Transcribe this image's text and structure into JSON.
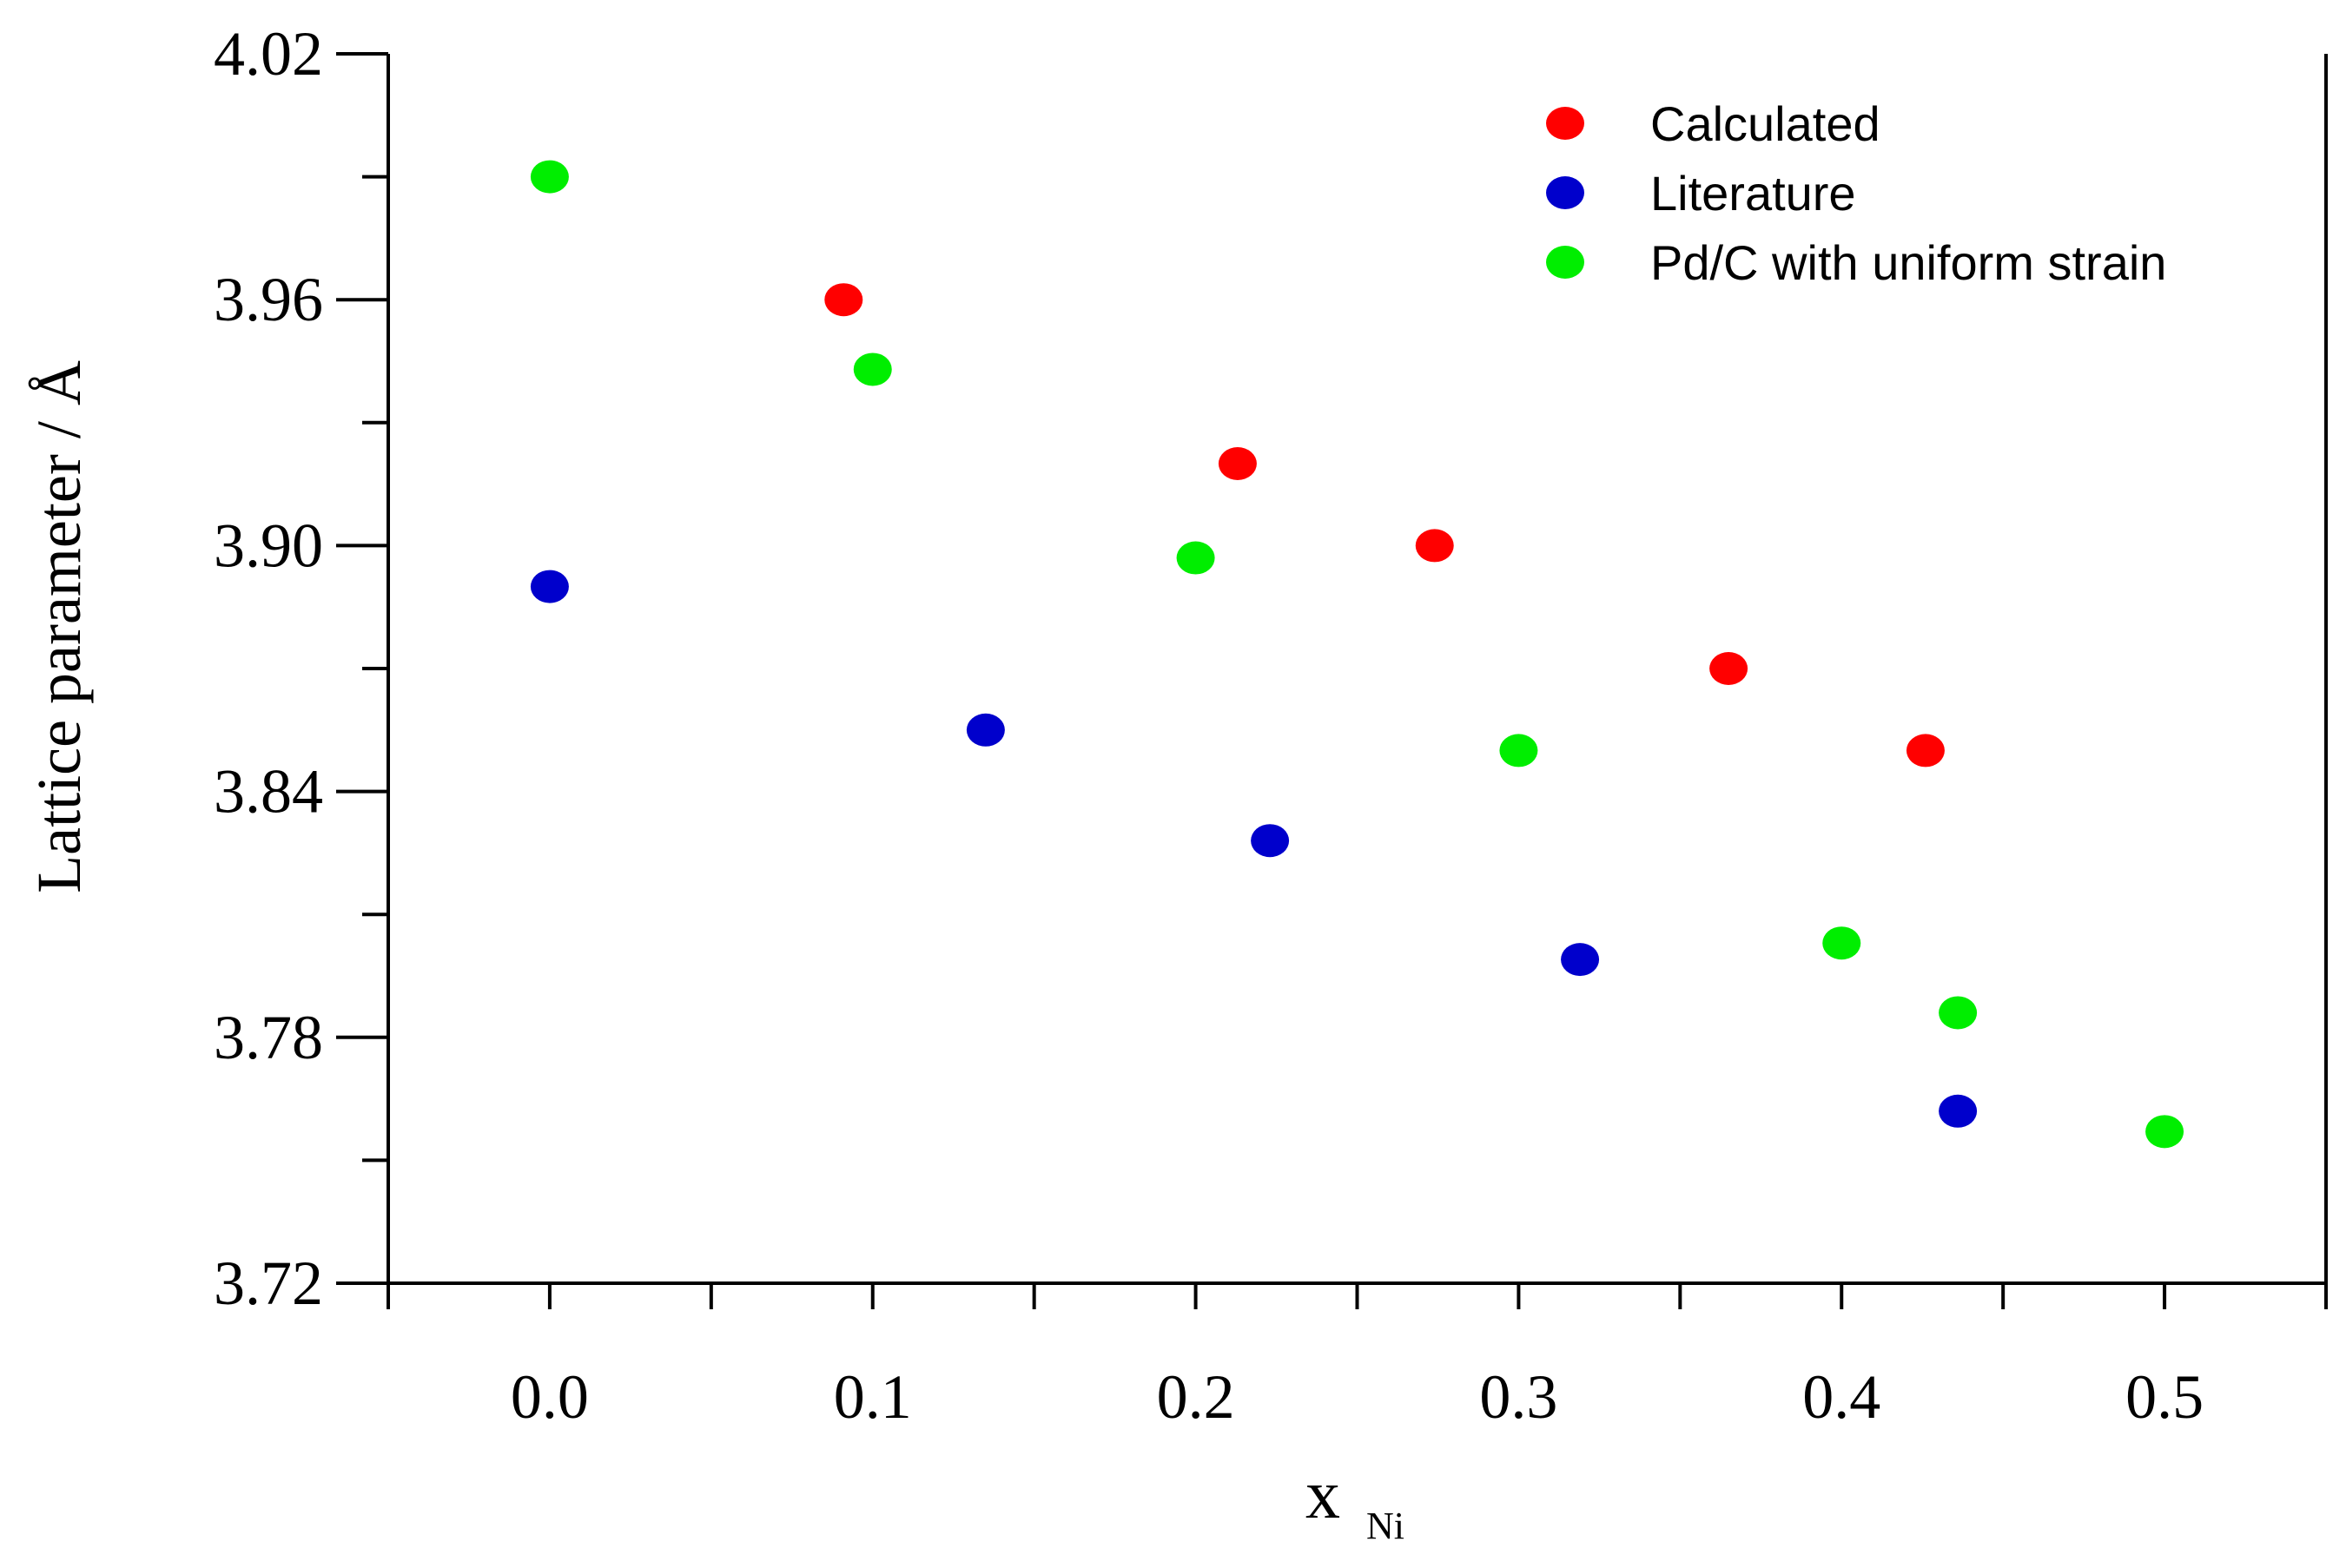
{
  "chart_data": {
    "type": "scatter",
    "title": "",
    "xlabel": "x",
    "xlabel_subscript": "Ni",
    "ylabel": "Lattice parameter / Å",
    "xlim": [
      -0.05,
      0.55
    ],
    "ylim": [
      3.72,
      4.02
    ],
    "x_ticks": [
      0.0,
      0.1,
      0.2,
      0.3,
      0.4,
      0.5
    ],
    "x_tick_labels": [
      "0.0",
      "0.1",
      "0.2",
      "0.3",
      "0.4",
      "0.5"
    ],
    "x_minor_ticks": [
      -0.05,
      0.05,
      0.15,
      0.25,
      0.35,
      0.45,
      0.55
    ],
    "y_ticks": [
      3.72,
      3.78,
      3.84,
      3.9,
      3.96,
      4.02
    ],
    "y_tick_labels": [
      "3.72",
      "3.78",
      "3.84",
      "3.90",
      "3.96",
      "4.02"
    ],
    "y_minor_ticks": [
      3.75,
      3.81,
      3.87,
      3.93,
      3.99
    ],
    "grid": false,
    "legend_position": "top-right",
    "series": [
      {
        "name": "Calculated",
        "color": "#ff0000",
        "x": [
          0.091,
          0.213,
          0.274,
          0.365,
          0.426
        ],
        "y": [
          3.96,
          3.92,
          3.9,
          3.87,
          3.85
        ]
      },
      {
        "name": "Literature",
        "color": "#0000cc",
        "x": [
          0.0,
          0.135,
          0.223,
          0.319,
          0.436
        ],
        "y": [
          3.89,
          3.855,
          3.828,
          3.799,
          3.762
        ]
      },
      {
        "name": "Pd/C with uniform strain",
        "color": "#00ee00",
        "x": [
          0.0,
          0.1,
          0.2,
          0.3,
          0.4,
          0.436,
          0.5
        ],
        "y": [
          3.99,
          3.943,
          3.897,
          3.85,
          3.803,
          3.786,
          3.757
        ]
      }
    ]
  }
}
